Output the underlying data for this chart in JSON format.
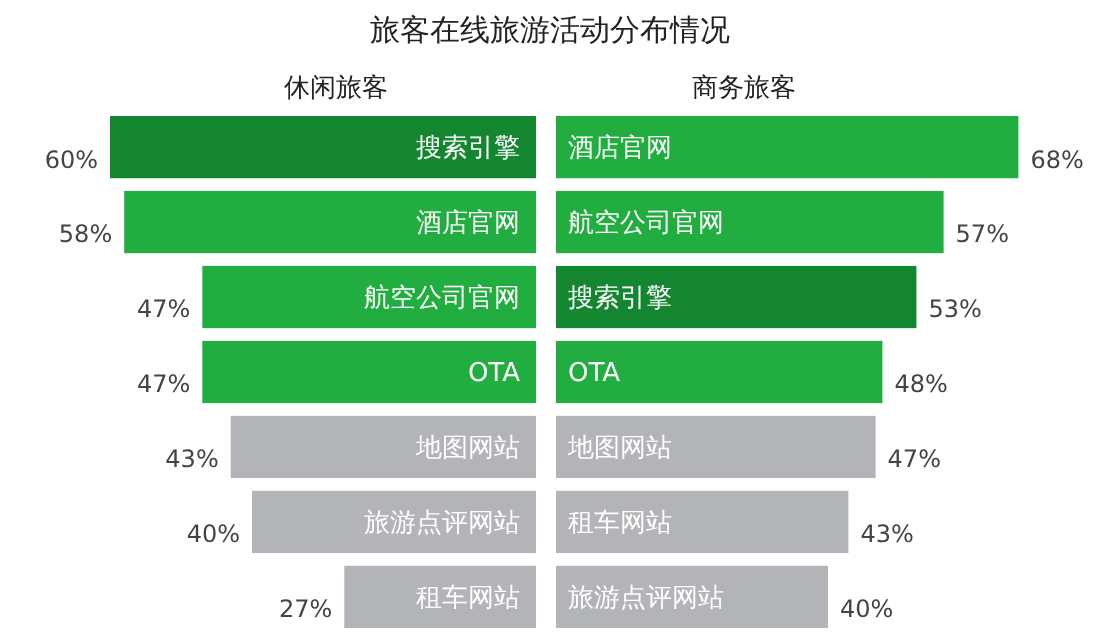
{
  "chart_data": [
    {
      "type": "bar",
      "orientation": "horizontal",
      "title": "旅客在线旅游活动分布情况",
      "subtitle": "休闲旅客",
      "categories": [
        "搜索引擎",
        "酒店官网",
        "航空公司官网",
        "OTA",
        "地图网站",
        "旅游点评网站",
        "租车网站"
      ],
      "values": [
        60,
        58,
        47,
        47,
        43,
        40,
        27
      ],
      "value_labels": [
        "60%",
        "58%",
        "47%",
        "47%",
        "43%",
        "40%",
        "27%"
      ],
      "colors": [
        "#13862f",
        "#21ad3f",
        "#21ad3f",
        "#21ad3f",
        "#b3b4b8",
        "#b3b4b8",
        "#b3b4b8"
      ]
    },
    {
      "type": "bar",
      "orientation": "horizontal",
      "subtitle": "商务旅客",
      "categories": [
        "酒店官网",
        "航空公司官网",
        "搜索引擎",
        "OTA",
        "地图网站",
        "租车网站",
        "旅游点评网站"
      ],
      "values": [
        68,
        57,
        53,
        48,
        47,
        43,
        40
      ],
      "value_labels": [
        "68%",
        "57%",
        "53%",
        "48%",
        "47%",
        "43%",
        "40%"
      ],
      "colors": [
        "#21ad3f",
        "#21ad3f",
        "#13862f",
        "#21ad3f",
        "#b3b4b8",
        "#b3b4b8",
        "#b3b4b8"
      ]
    }
  ]
}
